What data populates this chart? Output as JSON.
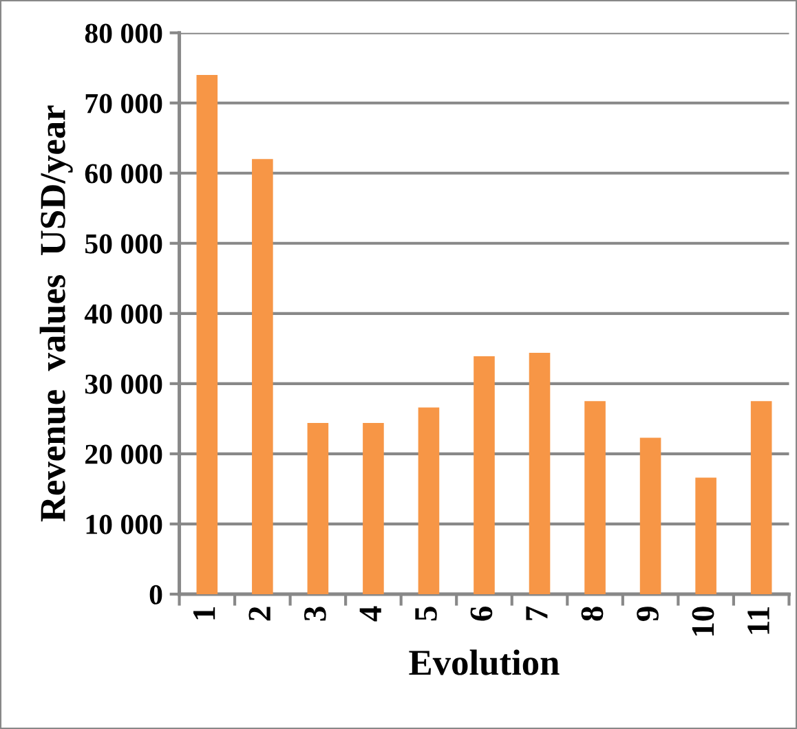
{
  "chart_data": {
    "type": "bar",
    "xlabel": "Evolution",
    "ylabel": "Revenue  values  USD/year",
    "categories": [
      "1",
      "2",
      "3",
      "4",
      "5",
      "6",
      "7",
      "8",
      "9",
      "10",
      "11"
    ],
    "values": [
      74000,
      62000,
      24400,
      24400,
      26600,
      33900,
      34400,
      27500,
      22300,
      16600,
      27500
    ],
    "color": "#f79646",
    "ylim": [
      0,
      80000
    ],
    "yticks": [
      0,
      {
        "value": 10000,
        "label": "10 000"
      },
      {
        "value": 20000,
        "label": "20 000"
      },
      {
        "value": 30000,
        "label": "30 000"
      },
      {
        "value": 40000,
        "label": "40 000"
      },
      {
        "value": 50000,
        "label": "50 000"
      },
      {
        "value": 60000,
        "label": "60 000"
      },
      {
        "value": 70000,
        "label": "70 000"
      },
      {
        "value": 80000,
        "label": "80 000"
      }
    ],
    "grid": "y",
    "legend": false
  }
}
